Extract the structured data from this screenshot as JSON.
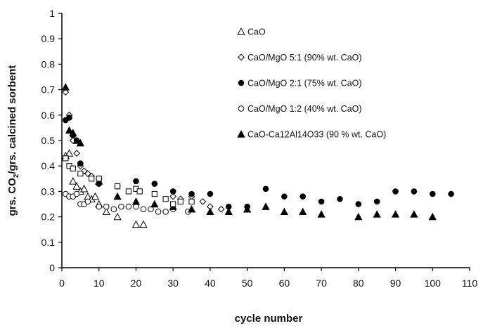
{
  "chart_data": {
    "type": "scatter",
    "xlabel": "cycle number",
    "ylabel_parts": [
      "grs. CO",
      "2",
      "/grs. calcined sorbent"
    ],
    "xlim": [
      0,
      110
    ],
    "ylim": [
      0,
      1
    ],
    "x_ticks": [
      "0",
      "10",
      "20",
      "30",
      "40",
      "50",
      "60",
      "70",
      "80",
      "90",
      "100",
      "110"
    ],
    "y_ticks": [
      "0",
      "0.1",
      "0.2",
      "0.3",
      "0.4",
      "0.5",
      "0.6",
      "0.7",
      "0.8",
      "0.9",
      "1"
    ],
    "legend_position": "top-right",
    "series": [
      {
        "name": "CaO",
        "marker": "triangle-open",
        "points": [
          [
            1,
            0.44
          ],
          [
            2,
            0.45
          ],
          [
            3,
            0.34
          ],
          [
            4,
            0.32
          ],
          [
            5,
            0.3
          ],
          [
            6,
            0.31
          ],
          [
            7,
            0.28
          ],
          [
            8,
            0.27
          ],
          [
            9,
            0.28
          ],
          [
            10,
            0.25
          ],
          [
            12,
            0.22
          ],
          [
            15,
            0.2
          ],
          [
            20,
            0.17
          ],
          [
            22,
            0.17
          ]
        ]
      },
      {
        "name": "CaO/MgO 5:1 (90% wt. CaO)",
        "marker": "diamond-open",
        "points": [
          [
            1,
            0.69
          ],
          [
            2,
            0.6
          ],
          [
            3,
            0.5
          ],
          [
            4,
            0.45
          ],
          [
            5,
            0.4
          ],
          [
            6,
            0.38
          ],
          [
            7,
            0.37
          ],
          [
            8,
            0.36
          ],
          [
            10,
            0.35
          ],
          [
            30,
            0.28
          ],
          [
            32,
            0.27
          ],
          [
            35,
            0.28
          ],
          [
            38,
            0.26
          ],
          [
            40,
            0.24
          ],
          [
            43,
            0.23
          ]
        ]
      },
      {
        "name": "CaO/MgO 2:1 (75% wt. CaO)",
        "marker": "circle-filled",
        "points": [
          [
            1,
            0.58
          ],
          [
            2,
            0.59
          ],
          [
            3,
            0.52
          ],
          [
            4,
            0.5
          ],
          [
            5,
            0.41
          ],
          [
            10,
            0.33
          ],
          [
            15,
            0.32
          ],
          [
            20,
            0.34
          ],
          [
            25,
            0.33
          ],
          [
            30,
            0.3
          ],
          [
            35,
            0.29
          ],
          [
            40,
            0.29
          ],
          [
            45,
            0.24
          ],
          [
            50,
            0.24
          ],
          [
            55,
            0.31
          ],
          [
            60,
            0.28
          ],
          [
            65,
            0.28
          ],
          [
            70,
            0.26
          ],
          [
            75,
            0.27
          ],
          [
            80,
            0.25
          ],
          [
            85,
            0.26
          ],
          [
            90,
            0.3
          ],
          [
            95,
            0.3
          ],
          [
            100,
            0.29
          ],
          [
            105,
            0.29
          ]
        ]
      },
      {
        "name": "CaO/MgO 1:2 (40% wt. CaO)",
        "marker": "circle-open",
        "points": [
          [
            1,
            0.29
          ],
          [
            2,
            0.28
          ],
          [
            3,
            0.28
          ],
          [
            4,
            0.29
          ],
          [
            5,
            0.25
          ],
          [
            6,
            0.25
          ],
          [
            7,
            0.26
          ],
          [
            10,
            0.24
          ],
          [
            12,
            0.24
          ],
          [
            14,
            0.23
          ],
          [
            16,
            0.24
          ],
          [
            18,
            0.24
          ],
          [
            20,
            0.24
          ],
          [
            22,
            0.23
          ],
          [
            24,
            0.23
          ],
          [
            26,
            0.22
          ],
          [
            28,
            0.22
          ],
          [
            30,
            0.23
          ],
          [
            34,
            0.22
          ]
        ]
      },
      {
        "name": "CaO-Ca12Al14O33 (90 % wt. CaO)",
        "marker": "triangle-filled",
        "points": [
          [
            1,
            0.71
          ],
          [
            2,
            0.54
          ],
          [
            3,
            0.53
          ],
          [
            4,
            0.5
          ],
          [
            5,
            0.49
          ],
          [
            10,
            0.34
          ],
          [
            15,
            0.28
          ],
          [
            20,
            0.26
          ],
          [
            25,
            0.25
          ],
          [
            30,
            0.24
          ],
          [
            35,
            0.23
          ],
          [
            40,
            0.22
          ],
          [
            45,
            0.22
          ],
          [
            50,
            0.23
          ],
          [
            55,
            0.24
          ],
          [
            60,
            0.22
          ],
          [
            65,
            0.22
          ],
          [
            70,
            0.21
          ],
          [
            80,
            0.2
          ],
          [
            85,
            0.21
          ],
          [
            90,
            0.21
          ],
          [
            95,
            0.21
          ],
          [
            100,
            0.2
          ]
        ]
      },
      {
        "name": "",
        "marker": "square-open",
        "points": [
          [
            1,
            0.43
          ],
          [
            2,
            0.4
          ],
          [
            3,
            0.39
          ],
          [
            5,
            0.37
          ],
          [
            8,
            0.35
          ],
          [
            10,
            0.35
          ],
          [
            15,
            0.32
          ],
          [
            18,
            0.3
          ],
          [
            20,
            0.31
          ],
          [
            21,
            0.3
          ],
          [
            25,
            0.29
          ],
          [
            28,
            0.27
          ],
          [
            30,
            0.25
          ],
          [
            32,
            0.26
          ],
          [
            35,
            0.26
          ]
        ]
      }
    ]
  }
}
